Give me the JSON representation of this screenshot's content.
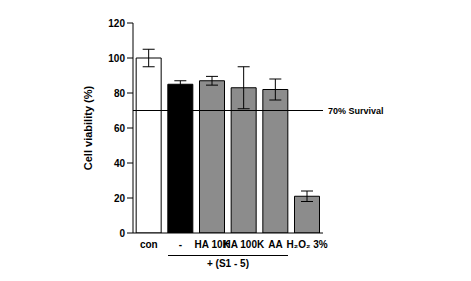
{
  "chart_data": {
    "type": "bar",
    "y_label": "Cell viability (%)",
    "categories": [
      "con",
      "-",
      "HA 10K",
      "HA 100K",
      "AA",
      "H₂O₂ 3%"
    ],
    "values": [
      100,
      85,
      87,
      83,
      82,
      21
    ],
    "errors": [
      5,
      2,
      2.5,
      12,
      6,
      3
    ],
    "colors": [
      "#ffffff",
      "#000000",
      "#8c8c8c",
      "#8c8c8c",
      "#8c8c8c",
      "#8c8c8c"
    ],
    "ylim": [
      0,
      120
    ],
    "yticks": [
      0,
      20,
      40,
      60,
      80,
      100,
      120
    ],
    "grid": false,
    "reference_line": {
      "value": 70,
      "label": "70% Survival"
    },
    "group": {
      "label": "+ (S1 - 5)",
      "categories": [
        "-",
        "HA 10K",
        "HA 100K",
        "AA"
      ]
    }
  }
}
